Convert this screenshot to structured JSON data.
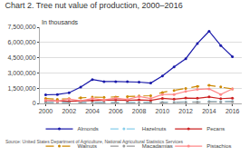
{
  "chart_data": {
    "type": "line",
    "title": "Chart 2. Tree nut value of production, 2000–2016",
    "ylabel": "In thousands",
    "annotations": [
      "Source: United States Department of Agriculture, National Agricultural Statistics Services"
    ],
    "x": [
      2000,
      2001,
      2002,
      2003,
      2004,
      2005,
      2006,
      2007,
      2008,
      2009,
      2010,
      2011,
      2012,
      2013,
      2014,
      2015,
      2016
    ],
    "series": [
      {
        "name": "Almonds",
        "color": "#1a1aaa",
        "line_style": "solid",
        "marker": "circle",
        "values": [
          850000,
          880000,
          1050000,
          1600000,
          2350000,
          2150000,
          2150000,
          2150000,
          2100000,
          2000000,
          2700000,
          3600000,
          4400000,
          5900000,
          7100000,
          5700000,
          4600000
        ]
      },
      {
        "name": "Hazelnuts",
        "color": "#87CEEB",
        "line_style": "dashed",
        "marker": "circle",
        "values": [
          110000,
          95000,
          75000,
          85000,
          110000,
          95000,
          95000,
          90000,
          85000,
          75000,
          120000,
          120000,
          140000,
          140000,
          190000,
          180000,
          190000
        ]
      },
      {
        "name": "Pecans",
        "color": "#cc2222",
        "line_style": "solid",
        "marker": "circle",
        "values": [
          290000,
          240000,
          210000,
          250000,
          290000,
          300000,
          340000,
          300000,
          350000,
          300000,
          500000,
          420000,
          530000,
          510000,
          640000,
          470000,
          520000
        ]
      },
      {
        "name": "Walnuts",
        "color": "#cc8800",
        "line_style": "dashed",
        "marker": "circle",
        "values": [
          480000,
          410000,
          460000,
          560000,
          620000,
          600000,
          630000,
          660000,
          730000,
          760000,
          1080000,
          1280000,
          1480000,
          1680000,
          1780000,
          1630000,
          1430000
        ]
      },
      {
        "name": "Macadamias",
        "color": "#999999",
        "line_style": "dashed",
        "marker": "circle",
        "values": [
          65000,
          60000,
          60000,
          75000,
          75000,
          75000,
          75000,
          70000,
          70000,
          70000,
          85000,
          95000,
          105000,
          125000,
          155000,
          145000,
          165000
        ]
      },
      {
        "name": "Pistachios",
        "color": "#ff8888",
        "line_style": "solid",
        "marker": "circle",
        "values": [
          330000,
          210000,
          430000,
          260000,
          480000,
          340000,
          530000,
          400000,
          680000,
          480000,
          880000,
          880000,
          1180000,
          1380000,
          1430000,
          880000,
          1430000
        ]
      }
    ],
    "xlim": [
      1999.5,
      2016.8
    ],
    "xticks": [
      2000,
      2002,
      2004,
      2006,
      2008,
      2010,
      2012,
      2014,
      2016
    ],
    "ylim": [
      0,
      7500000
    ],
    "yticks": [
      0,
      {
        "value": 1500000,
        "label": "1,500,000"
      },
      {
        "value": 3000000,
        "label": "3,000,000"
      },
      {
        "value": 4500000,
        "label": "4,500,000"
      },
      {
        "value": 6000000,
        "label": "6,000,000"
      },
      {
        "value": 7500000,
        "label": "7,500,000"
      }
    ],
    "grid": "y",
    "legend": "bottom"
  }
}
